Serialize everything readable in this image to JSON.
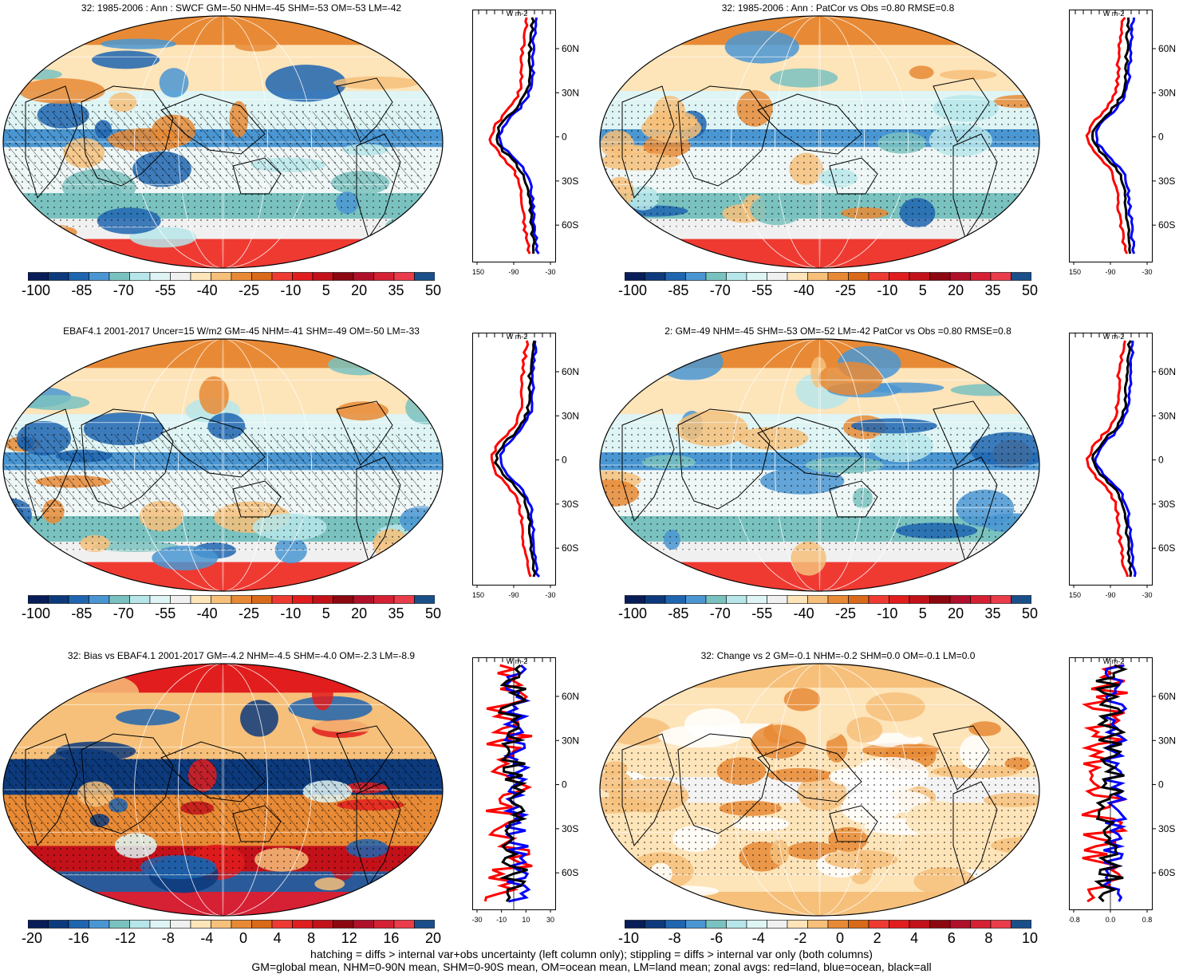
{
  "panels": [
    {
      "title": "32: 1985-2006 : Ann : SWCF GM=-50 NHM=-45 SHM=-53 OM=-53 LM=-42",
      "colorbar_labels": [
        "-100",
        "-85",
        "-70",
        "-55",
        "-40",
        "-25",
        "-10",
        "5",
        "20",
        "35",
        "50"
      ],
      "zonal_xticks": [
        "-150",
        "-90",
        "-30"
      ],
      "zonal_ylabels": [
        "60N",
        "30N",
        "0",
        "30S",
        "60S"
      ],
      "zonal_units": "W m-2",
      "hatching": true,
      "stippling": true
    },
    {
      "title": "32: 1985-2006 : Ann : PatCor vs Obs =0.80 RMSE=0.8",
      "colorbar_labels": [
        "-100",
        "-85",
        "-70",
        "-55",
        "-40",
        "-25",
        "-10",
        "5",
        "20",
        "35",
        "50"
      ],
      "zonal_xticks": [
        "-150",
        "-90",
        "-30"
      ],
      "zonal_ylabels": [
        "60N",
        "30N",
        "0",
        "30S",
        "60S"
      ],
      "zonal_units": "W m-2",
      "hatching": false,
      "stippling": true
    },
    {
      "title": "EBAF4.1 2001-2017 Uncer=15 W/m2 GM=-45 NHM=-41 SHM=-49 OM=-50 LM=-33",
      "colorbar_labels": [
        "-100",
        "-85",
        "-70",
        "-55",
        "-40",
        "-25",
        "-10",
        "5",
        "20",
        "35",
        "50"
      ],
      "zonal_xticks": [
        "-150",
        "-90",
        "-30"
      ],
      "zonal_ylabels": [
        "60N",
        "30N",
        "0",
        "30S",
        "60S"
      ],
      "zonal_units": "W m-2",
      "hatching": true,
      "stippling": true
    },
    {
      "title": "2: GM=-49 NHM=-45 SHM=-53 OM=-52 LM=-42 PatCor vs Obs =0.80 RMSE=0.8",
      "colorbar_labels": [
        "-100",
        "-85",
        "-70",
        "-55",
        "-40",
        "-25",
        "-10",
        "5",
        "20",
        "35",
        "50"
      ],
      "zonal_xticks": [
        "-150",
        "-90",
        "-30"
      ],
      "zonal_ylabels": [
        "60N",
        "30N",
        "0",
        "30S",
        "60S"
      ],
      "zonal_units": "W m-2",
      "hatching": false,
      "stippling": true
    },
    {
      "title": "32: Bias vs EBAF4.1 2001-2017 GM=-4.2 NHM=-4.5 SHM=-4.0 OM=-2.3 LM=-8.9",
      "colorbar_labels": [
        "-20",
        "-16",
        "-12",
        "-8",
        "-4",
        "0",
        "4",
        "8",
        "12",
        "16",
        "20"
      ],
      "zonal_xticks": [
        "-30",
        "-10",
        "10",
        "30"
      ],
      "zonal_ylabels": [
        "60N",
        "30N",
        "0",
        "30S",
        "60S"
      ],
      "zonal_units": "W m-2",
      "hatching": true,
      "stippling": true
    },
    {
      "title": "32: Change vs 2 GM=-0.1 NHM=-0.2 SHM=0.0 OM=-0.1 LM=0.0",
      "colorbar_labels": [
        "-10",
        "-8",
        "-6",
        "-4",
        "-2",
        "0",
        "2",
        "4",
        "6",
        "8",
        "10"
      ],
      "zonal_xticks": [
        "-0.8",
        "0.0",
        "0.8"
      ],
      "zonal_ylabels": [
        "60N",
        "30N",
        "0",
        "30S",
        "60S"
      ],
      "zonal_units": "W m-2",
      "hatching": false,
      "stippling": true
    }
  ],
  "colorbar_colors": [
    "#081d58",
    "#0c3a7c",
    "#1f65b0",
    "#4a96d2",
    "#7ac2c0",
    "#b7e6ea",
    "#dff4f4",
    "#f0f0f0",
    "#fde4b9",
    "#f6c07a",
    "#e88a35",
    "#d86a1a",
    "#ef3a32",
    "#e21d1d",
    "#c3111a",
    "#8c0710",
    "#b0102a",
    "#d62034",
    "#ea3c4a",
    "#1a4f8a"
  ],
  "footer": {
    "line1": "hatching = diffs > internal var+obs uncertainty (left column only); stippling = diffs > internal var only (both columns)",
    "line2": "GM=global mean, NHM=0-90N mean, SHM=0-90S mean, OM=ocean mean, LM=land mean; zonal avgs: red=land, blue=ocean, black=all"
  }
}
